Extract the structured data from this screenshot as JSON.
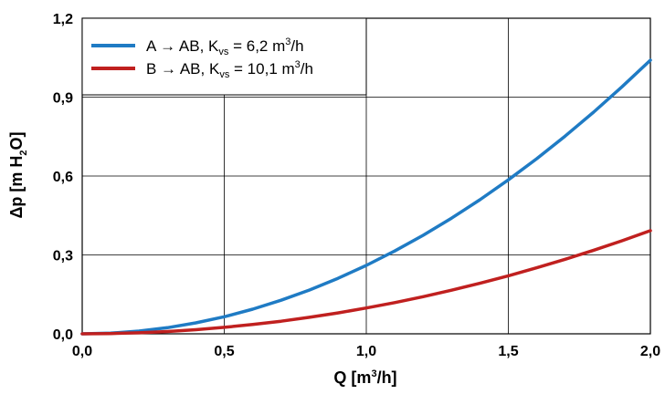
{
  "chart_data": {
    "type": "line",
    "xlabel": {
      "main": "Q [m",
      "sup": "3",
      "rest": "/h]"
    },
    "ylabel": {
      "main": "Δp [m H",
      "sub": "2",
      "rest": "O]"
    },
    "xlim": [
      0,
      2
    ],
    "ylim": [
      0,
      1.2
    ],
    "x_ticks": [
      "0,0",
      "0,5",
      "1,0",
      "1,5",
      "2,0"
    ],
    "y_ticks": [
      "0,0",
      "0,3",
      "0,6",
      "0,9",
      "1,2"
    ],
    "grid": true,
    "legend_position": "top-left",
    "series": [
      {
        "name": "A → AB, Kvs = 6,2 m3/h",
        "label": {
          "a": "A → AB, K",
          "sub": "vs",
          "b": " = 6,2 m",
          "sup": "3",
          "c": "/h"
        },
        "color": "#1f7bc4",
        "x": [
          0,
          0.1,
          0.2,
          0.3,
          0.4,
          0.5,
          0.6,
          0.7,
          0.8,
          0.9,
          1.0,
          1.1,
          1.2,
          1.3,
          1.4,
          1.5,
          1.6,
          1.7,
          1.8,
          1.9,
          2.0
        ],
        "y": [
          0,
          0.0026,
          0.0104,
          0.0234,
          0.0416,
          0.065,
          0.0937,
          0.1275,
          0.1665,
          0.2107,
          0.2601,
          0.3148,
          0.3746,
          0.4396,
          0.5099,
          0.5853,
          0.666,
          0.7518,
          0.8428,
          0.9391,
          1.0406
        ]
      },
      {
        "name": "B → AB, Kvs = 10,1 m3/h",
        "label": {
          "a": "B → AB, K",
          "sub": "vs",
          "b": " = 10,1 m",
          "sup": "3",
          "c": "/h"
        },
        "color": "#c0201f",
        "x": [
          0,
          0.1,
          0.2,
          0.3,
          0.4,
          0.5,
          0.6,
          0.7,
          0.8,
          0.9,
          1.0,
          1.1,
          1.2,
          1.3,
          1.4,
          1.5,
          1.6,
          1.7,
          1.8,
          1.9,
          2.0
        ],
        "y": [
          0,
          0.001,
          0.0039,
          0.0088,
          0.0157,
          0.0245,
          0.0353,
          0.048,
          0.0627,
          0.0794,
          0.098,
          0.1186,
          0.1412,
          0.1657,
          0.1921,
          0.2206,
          0.251,
          0.2833,
          0.3176,
          0.3539,
          0.3921
        ]
      }
    ]
  }
}
